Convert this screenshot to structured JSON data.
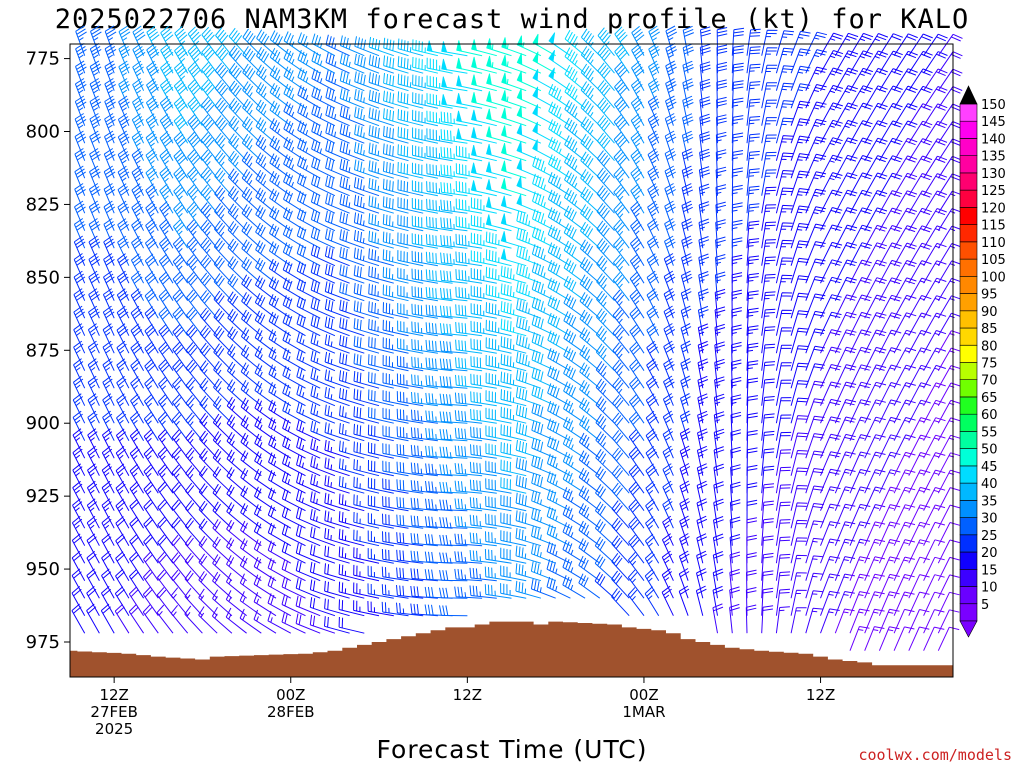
{
  "chart_data": {
    "type": "wind_barb_time_height",
    "title": "2025022706 NAM3KM forecast wind profile (kt) for KALO",
    "xlabel": "Forecast Time (UTC)",
    "ylabel": "",
    "credit": "coolwx.com/models",
    "xlim_hours_from_12Z_27FEB": [
      -3,
      57
    ],
    "ylim_hpa": [
      770,
      987
    ],
    "y_scale": "pressure (inverted)",
    "yticks": [
      775,
      800,
      825,
      850,
      875,
      900,
      925,
      950,
      975
    ],
    "xticks": [
      {
        "hour": 0,
        "lines": [
          "12Z",
          "27FEB",
          "2025"
        ]
      },
      {
        "hour": 12,
        "lines": [
          "00Z",
          "28FEB"
        ]
      },
      {
        "hour": 24,
        "lines": [
          "12Z"
        ]
      },
      {
        "hour": 36,
        "lines": [
          "00Z",
          "1MAR"
        ]
      },
      {
        "hour": 48,
        "lines": [
          "12Z"
        ]
      }
    ],
    "time_step_hours": 1,
    "level_step_hpa": 6,
    "wind_keyframes": [
      {
        "hour": 0,
        "dir_deg": 330,
        "spd_top": 35,
        "spd_sfc": 20
      },
      {
        "hour": 5,
        "dir_deg": 320,
        "spd_top": 45,
        "spd_sfc": 15
      },
      {
        "hour": 10,
        "dir_deg": 305,
        "spd_top": 40,
        "spd_sfc": 15
      },
      {
        "hour": 16,
        "dir_deg": 285,
        "spd_top": 35,
        "spd_sfc": 20
      },
      {
        "hour": 24,
        "dir_deg": 270,
        "spd_top": 50,
        "spd_sfc": 30
      },
      {
        "hour": 28,
        "dir_deg": 280,
        "spd_top": 55,
        "spd_sfc": 35
      },
      {
        "hour": 33,
        "dir_deg": 305,
        "spd_top": 45,
        "spd_sfc": 30
      },
      {
        "hour": 40,
        "dir_deg": 345,
        "spd_top": 30,
        "spd_sfc": 20
      },
      {
        "hour": 48,
        "dir_deg": 20,
        "spd_top": 25,
        "spd_sfc": 15
      },
      {
        "hour": 56,
        "dir_deg": 25,
        "spd_top": 20,
        "spd_sfc": 10
      }
    ],
    "surface_pressure_hpa": [
      {
        "hour": -3,
        "p": 978
      },
      {
        "hour": 1,
        "p": 979
      },
      {
        "hour": 3,
        "p": 980
      },
      {
        "hour": 6,
        "p": 981
      },
      {
        "hour": 7,
        "p": 980
      },
      {
        "hour": 13,
        "p": 979
      },
      {
        "hour": 15,
        "p": 978
      },
      {
        "hour": 16,
        "p": 977
      },
      {
        "hour": 17,
        "p": 976
      },
      {
        "hour": 18,
        "p": 975
      },
      {
        "hour": 20,
        "p": 973
      },
      {
        "hour": 21,
        "p": 972
      },
      {
        "hour": 22,
        "p": 971
      },
      {
        "hour": 23,
        "p": 970
      },
      {
        "hour": 24,
        "p": 970
      },
      {
        "hour": 25,
        "p": 969
      },
      {
        "hour": 26,
        "p": 968
      },
      {
        "hour": 28,
        "p": 968
      },
      {
        "hour": 29,
        "p": 969
      },
      {
        "hour": 30,
        "p": 968
      },
      {
        "hour": 34,
        "p": 969
      },
      {
        "hour": 35,
        "p": 970
      },
      {
        "hour": 37,
        "p": 971
      },
      {
        "hour": 38,
        "p": 972
      },
      {
        "hour": 39,
        "p": 974
      },
      {
        "hour": 41,
        "p": 976
      },
      {
        "hour": 42,
        "p": 977
      },
      {
        "hour": 44,
        "p": 978
      },
      {
        "hour": 47,
        "p": 979
      },
      {
        "hour": 48,
        "p": 980
      },
      {
        "hour": 49,
        "p": 981
      },
      {
        "hour": 51,
        "p": 982
      },
      {
        "hour": 52,
        "p": 983
      },
      {
        "hour": 55,
        "p": 983
      },
      {
        "hour": 57,
        "p": 983
      }
    ],
    "colorbar": {
      "unit": "kt",
      "levels": [
        5,
        10,
        15,
        20,
        25,
        30,
        35,
        40,
        45,
        50,
        55,
        60,
        65,
        70,
        75,
        80,
        85,
        90,
        95,
        100,
        105,
        110,
        115,
        120,
        125,
        130,
        135,
        140,
        145,
        150
      ],
      "colors": [
        "#7a00ff",
        "#6a00ff",
        "#3c00ff",
        "#1000ff",
        "#0030ff",
        "#0060ff",
        "#0090ff",
        "#00b8ff",
        "#00dcff",
        "#00ffd8",
        "#00ffa0",
        "#00ff60",
        "#20ff20",
        "#70ff00",
        "#b8ff00",
        "#ffff00",
        "#ffd800",
        "#ffc000",
        "#ffa000",
        "#ff8800",
        "#ff7000",
        "#ff5000",
        "#ff2800",
        "#ff0000",
        "#ff0040",
        "#ff0070",
        "#ff00a0",
        "#ff00c8",
        "#ff00f0",
        "#ff40ff"
      ],
      "extend_top_color": "#000000",
      "extend_bottom_color": "#7a00ff"
    },
    "terrain_color": "#a0522d"
  }
}
